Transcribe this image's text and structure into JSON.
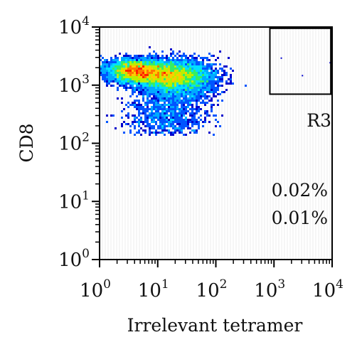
{
  "chart_data": {
    "type": "heatmap",
    "subtype": "flow-cytometry-density-plot",
    "xlabel": "Irrelevant tetramer",
    "ylabel": "CD8",
    "x_scale": "log",
    "y_scale": "log",
    "xlim": [
      1,
      10000
    ],
    "ylim": [
      1,
      10000
    ],
    "x_ticks": [
      {
        "value": 1,
        "base": "10",
        "exp": "0"
      },
      {
        "value": 10,
        "base": "10",
        "exp": "1"
      },
      {
        "value": 100,
        "base": "10",
        "exp": "2"
      },
      {
        "value": 1000,
        "base": "10",
        "exp": "3"
      },
      {
        "value": 10000,
        "base": "10",
        "exp": "4"
      }
    ],
    "y_ticks": [
      {
        "value": 1,
        "base": "10",
        "exp": "0"
      },
      {
        "value": 10,
        "base": "10",
        "exp": "1"
      },
      {
        "value": 100,
        "base": "10",
        "exp": "2"
      },
      {
        "value": 1000,
        "base": "10",
        "exp": "3"
      },
      {
        "value": 10000,
        "base": "10",
        "exp": "4"
      }
    ],
    "gate": {
      "name": "R3",
      "x_range": [
        850,
        9500
      ],
      "y_range": [
        700,
        9500
      ]
    },
    "annotations": [
      "0.02%",
      "0.01%"
    ],
    "density_clusters": [
      {
        "x_center": 12,
        "y_center": 1500,
        "x_spread_decades": 0.7,
        "y_spread_decades": 0.12,
        "weight": 1.0
      },
      {
        "x_center": 4,
        "y_center": 1800,
        "x_spread_decades": 0.5,
        "y_spread_decades": 0.1,
        "weight": 0.8
      },
      {
        "x_center": 30,
        "y_center": 1300,
        "x_spread_decades": 0.6,
        "y_spread_decades": 0.18,
        "weight": 0.55
      },
      {
        "x_center": 15,
        "y_center": 350,
        "x_spread_decades": 0.7,
        "y_spread_decades": 0.3,
        "weight": 0.35
      }
    ],
    "event_bounds": {
      "x": [
        1,
        600
      ],
      "y": [
        140,
        5000
      ]
    },
    "colormap": [
      "#0000cc",
      "#0055ff",
      "#00aaff",
      "#00e0ff",
      "#33ee66",
      "#bbee00",
      "#ffcc00",
      "#ff7700",
      "#ff2200"
    ],
    "grid": false,
    "legend": "none"
  }
}
